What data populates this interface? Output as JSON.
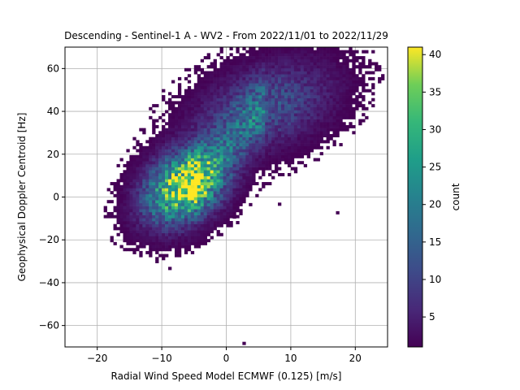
{
  "chart_data": {
    "type": "heatmap",
    "title": "Descending - Sentinel-1 A - WV2 - From 2022/11/01 to 2022/11/29",
    "xlabel": "Radial Wind Speed Model ECMWF (0.125) [m/s]",
    "ylabel": "Geophysical Doppler Centroid [Hz]",
    "xlim": [
      -25,
      25
    ],
    "ylim": [
      -70,
      70
    ],
    "xticks": [
      -20,
      -10,
      0,
      10,
      20
    ],
    "yticks": [
      -60,
      -40,
      -20,
      0,
      20,
      40,
      60
    ],
    "grid": true,
    "colormap": "viridis",
    "colorbar": {
      "label": "count",
      "min": 1,
      "max": 41,
      "ticks": [
        5,
        10,
        15,
        20,
        25,
        30,
        35,
        40
      ]
    },
    "density_clusters": [
      {
        "center_x": -6.5,
        "center_y": 5,
        "peak_count": 41
      },
      {
        "center_x": 6,
        "center_y": 42,
        "peak_count": 12
      }
    ],
    "extent": {
      "x": [
        -16,
        22
      ],
      "y": [
        -70,
        70
      ]
    }
  }
}
